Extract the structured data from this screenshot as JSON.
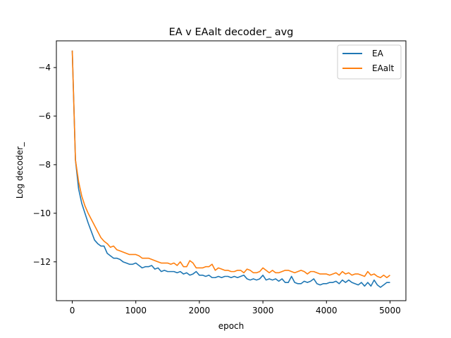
{
  "chart_data": {
    "type": "line",
    "title": "EA v EAalt decoder_ avg",
    "xlabel": "epoch",
    "ylabel": "Log decoder_",
    "xlim": [
      -250,
      5250
    ],
    "ylim": [
      -13.6,
      -2.9
    ],
    "x_ticks": [
      0,
      1000,
      2000,
      3000,
      4000,
      5000
    ],
    "x_tick_labels": [
      "0",
      "1000",
      "2000",
      "3000",
      "4000",
      "5000"
    ],
    "y_ticks": [
      -12,
      -10,
      -8,
      -6,
      -4
    ],
    "y_tick_labels": [
      "−12",
      "−10",
      "−8",
      "−6",
      "−4"
    ],
    "grid": false,
    "legend_position": "top-right",
    "x": [
      0,
      50,
      100,
      150,
      200,
      250,
      300,
      350,
      400,
      450,
      500,
      550,
      600,
      650,
      700,
      750,
      800,
      850,
      900,
      950,
      1000,
      1050,
      1100,
      1150,
      1200,
      1250,
      1300,
      1350,
      1400,
      1450,
      1500,
      1550,
      1600,
      1650,
      1700,
      1750,
      1800,
      1850,
      1900,
      1950,
      2000,
      2050,
      2100,
      2150,
      2200,
      2250,
      2300,
      2350,
      2400,
      2450,
      2500,
      2550,
      2600,
      2650,
      2700,
      2750,
      2800,
      2850,
      2900,
      2950,
      3000,
      3050,
      3100,
      3150,
      3200,
      3250,
      3300,
      3350,
      3400,
      3450,
      3500,
      3550,
      3600,
      3650,
      3700,
      3750,
      3800,
      3850,
      3900,
      3950,
      4000,
      4050,
      4100,
      4150,
      4200,
      4250,
      4300,
      4350,
      4400,
      4450,
      4500,
      4550,
      4600,
      4650,
      4700,
      4750,
      4800,
      4850,
      4900,
      4950,
      5000
    ],
    "series": [
      {
        "name": "EA",
        "color": "#1f77b4",
        "values": [
          -3.3,
          -7.8,
          -9.0,
          -9.6,
          -10.0,
          -10.4,
          -10.75,
          -11.1,
          -11.25,
          -11.35,
          -11.35,
          -11.65,
          -11.75,
          -11.85,
          -11.85,
          -11.9,
          -12.0,
          -12.05,
          -12.1,
          -12.1,
          -12.05,
          -12.15,
          -12.25,
          -12.2,
          -12.2,
          -12.15,
          -12.3,
          -12.25,
          -12.4,
          -12.35,
          -12.4,
          -12.4,
          -12.4,
          -12.45,
          -12.4,
          -12.5,
          -12.45,
          -12.55,
          -12.5,
          -12.4,
          -12.55,
          -12.55,
          -12.6,
          -12.55,
          -12.65,
          -12.65,
          -12.6,
          -12.65,
          -12.6,
          -12.6,
          -12.65,
          -12.6,
          -12.65,
          -12.6,
          -12.55,
          -12.7,
          -12.75,
          -12.7,
          -12.75,
          -12.7,
          -12.55,
          -12.75,
          -12.7,
          -12.75,
          -12.7,
          -12.8,
          -12.7,
          -12.85,
          -12.85,
          -12.6,
          -12.85,
          -12.9,
          -12.9,
          -12.8,
          -12.85,
          -12.8,
          -12.7,
          -12.9,
          -12.95,
          -12.9,
          -12.9,
          -12.85,
          -12.85,
          -12.8,
          -12.9,
          -12.75,
          -12.85,
          -12.75,
          -12.85,
          -12.9,
          -12.95,
          -12.85,
          -13.0,
          -12.85,
          -13.0,
          -12.75,
          -12.95,
          -13.05,
          -12.95,
          -12.85,
          -12.85
        ]
      },
      {
        "name": "EAalt",
        "color": "#ff7f0e",
        "values": [
          -3.3,
          -7.8,
          -8.7,
          -9.3,
          -9.7,
          -10.0,
          -10.25,
          -10.5,
          -10.75,
          -11.0,
          -11.15,
          -11.25,
          -11.4,
          -11.35,
          -11.5,
          -11.55,
          -11.6,
          -11.65,
          -11.7,
          -11.7,
          -11.7,
          -11.75,
          -11.85,
          -11.85,
          -11.85,
          -11.9,
          -11.95,
          -12.0,
          -12.05,
          -12.05,
          -12.05,
          -12.1,
          -12.05,
          -12.15,
          -12.0,
          -12.2,
          -12.2,
          -11.95,
          -12.05,
          -12.25,
          -12.25,
          -12.25,
          -12.2,
          -12.2,
          -12.1,
          -12.35,
          -12.25,
          -12.3,
          -12.35,
          -12.35,
          -12.4,
          -12.4,
          -12.35,
          -12.35,
          -12.45,
          -12.3,
          -12.35,
          -12.45,
          -12.45,
          -12.4,
          -12.25,
          -12.35,
          -12.45,
          -12.35,
          -12.45,
          -12.45,
          -12.4,
          -12.35,
          -12.35,
          -12.4,
          -12.45,
          -12.4,
          -12.35,
          -12.4,
          -12.5,
          -12.4,
          -12.4,
          -12.45,
          -12.5,
          -12.5,
          -12.5,
          -12.55,
          -12.5,
          -12.45,
          -12.55,
          -12.4,
          -12.5,
          -12.45,
          -12.55,
          -12.5,
          -12.5,
          -12.55,
          -12.6,
          -12.4,
          -12.55,
          -12.5,
          -12.6,
          -12.65,
          -12.55,
          -12.65,
          -12.55
        ]
      }
    ]
  }
}
